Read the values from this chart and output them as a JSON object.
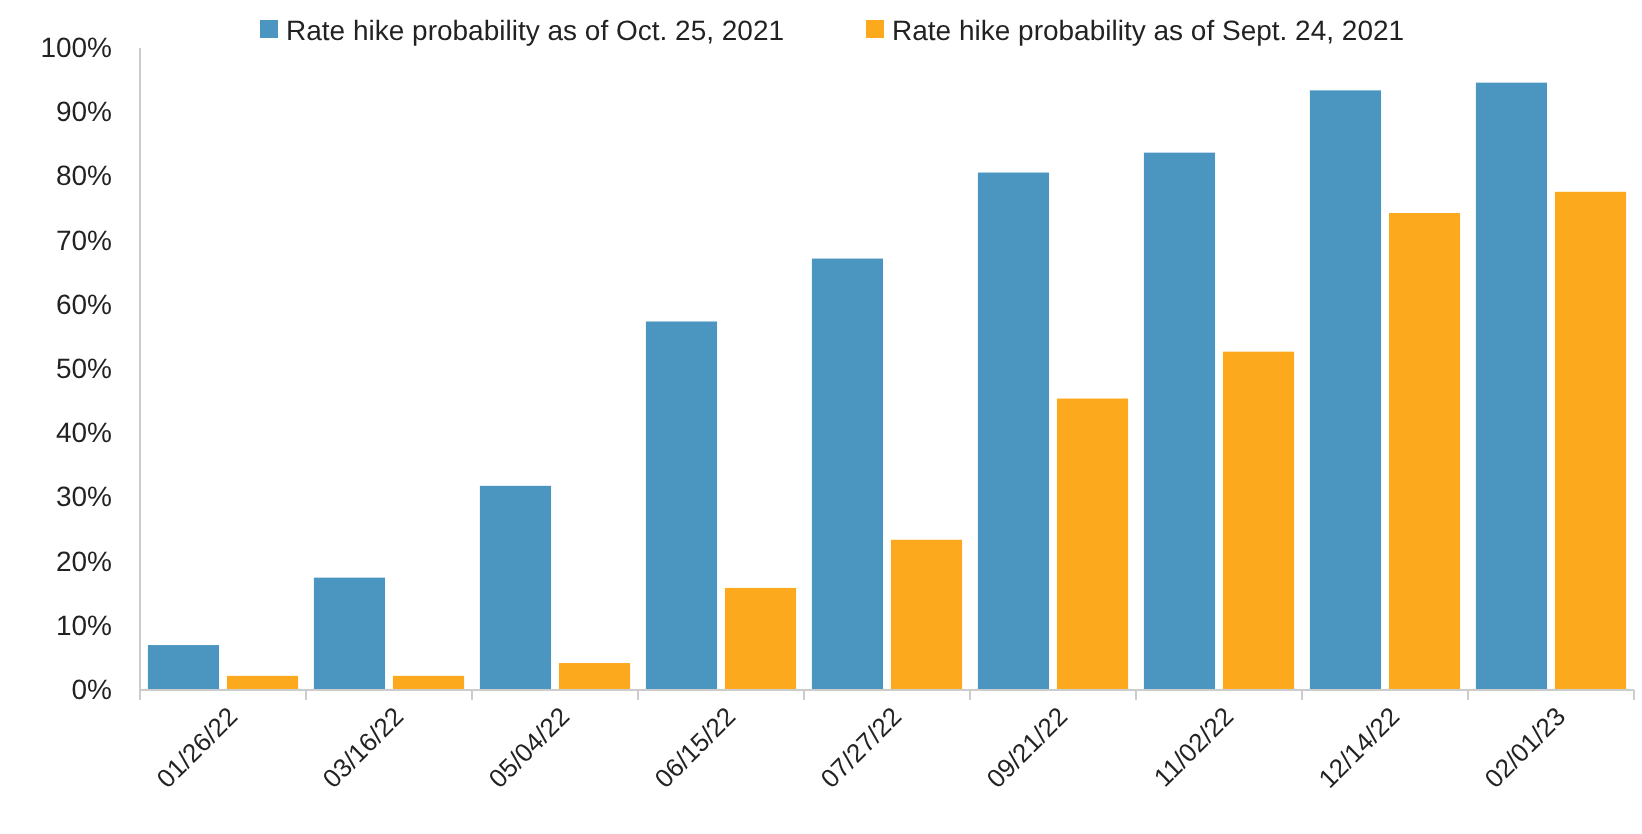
{
  "chart_data": {
    "type": "bar",
    "categories": [
      "01/26/22",
      "03/16/22",
      "05/04/22",
      "06/15/22",
      "07/27/22",
      "09/21/22",
      "11/02/22",
      "12/14/22",
      "02/01/23"
    ],
    "series": [
      {
        "name": "Rate hike probability as of Oct. 25, 2021",
        "color": "#4a96c0",
        "values": [
          7.0,
          17.5,
          31.8,
          57.4,
          67.2,
          80.6,
          83.7,
          93.4,
          94.6
        ]
      },
      {
        "name": "Rate hike probability as of Sept. 24, 2021",
        "color": "#fca91e",
        "values": [
          2.2,
          2.2,
          4.2,
          15.9,
          23.4,
          45.4,
          52.7,
          74.3,
          77.6
        ]
      }
    ],
    "ylim": [
      0,
      100
    ],
    "yticks": [
      {
        "value": 0,
        "label": "0%"
      },
      {
        "value": 10,
        "label": "10%"
      },
      {
        "value": 20,
        "label": "20%"
      },
      {
        "value": 30,
        "label": "30%"
      },
      {
        "value": 40,
        "label": "40%"
      },
      {
        "value": 50,
        "label": "50%"
      },
      {
        "value": 60,
        "label": "60%"
      },
      {
        "value": 70,
        "label": "70%"
      },
      {
        "value": 80,
        "label": "80%"
      },
      {
        "value": 90,
        "label": "90%"
      },
      {
        "value": 100,
        "label": "100%"
      }
    ],
    "grid": false,
    "legend": "top"
  }
}
